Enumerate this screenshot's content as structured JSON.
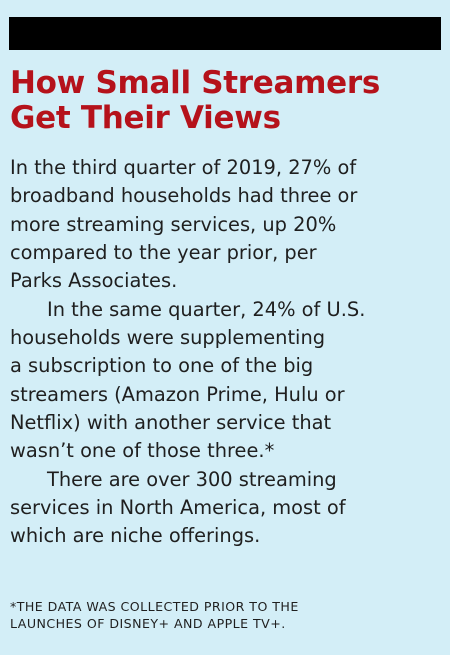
{
  "colors": {
    "background": "#d3eef7",
    "headline": "#b5121b",
    "bar": "#000000",
    "text": "#1f1f1f"
  },
  "headline": {
    "line1": "How Small Streamers",
    "line2": "Get Their Views"
  },
  "body": {
    "paragraph1": [
      "In the third quarter of 2019, 27% of",
      "broadband households had three or",
      "more streaming services, up 20%",
      "compared to the year prior, per",
      "Parks Associates."
    ],
    "paragraph2": [
      "In the same quarter, 24% of U.S.",
      "households were supplementing",
      "a subscription to one of the big",
      "streamers (Amazon Prime, Hulu or",
      "Netflix) with another service that",
      "wasn’t one of those three.*"
    ],
    "paragraph3": [
      "There are over 300 streaming",
      "services in North America, most of",
      "which are niche offerings."
    ]
  },
  "footnote": {
    "line1": "*THE DATA WAS COLLECTED PRIOR TO THE",
    "line2": "LAUNCHES OF DISNEY+ AND APPLE TV+."
  }
}
